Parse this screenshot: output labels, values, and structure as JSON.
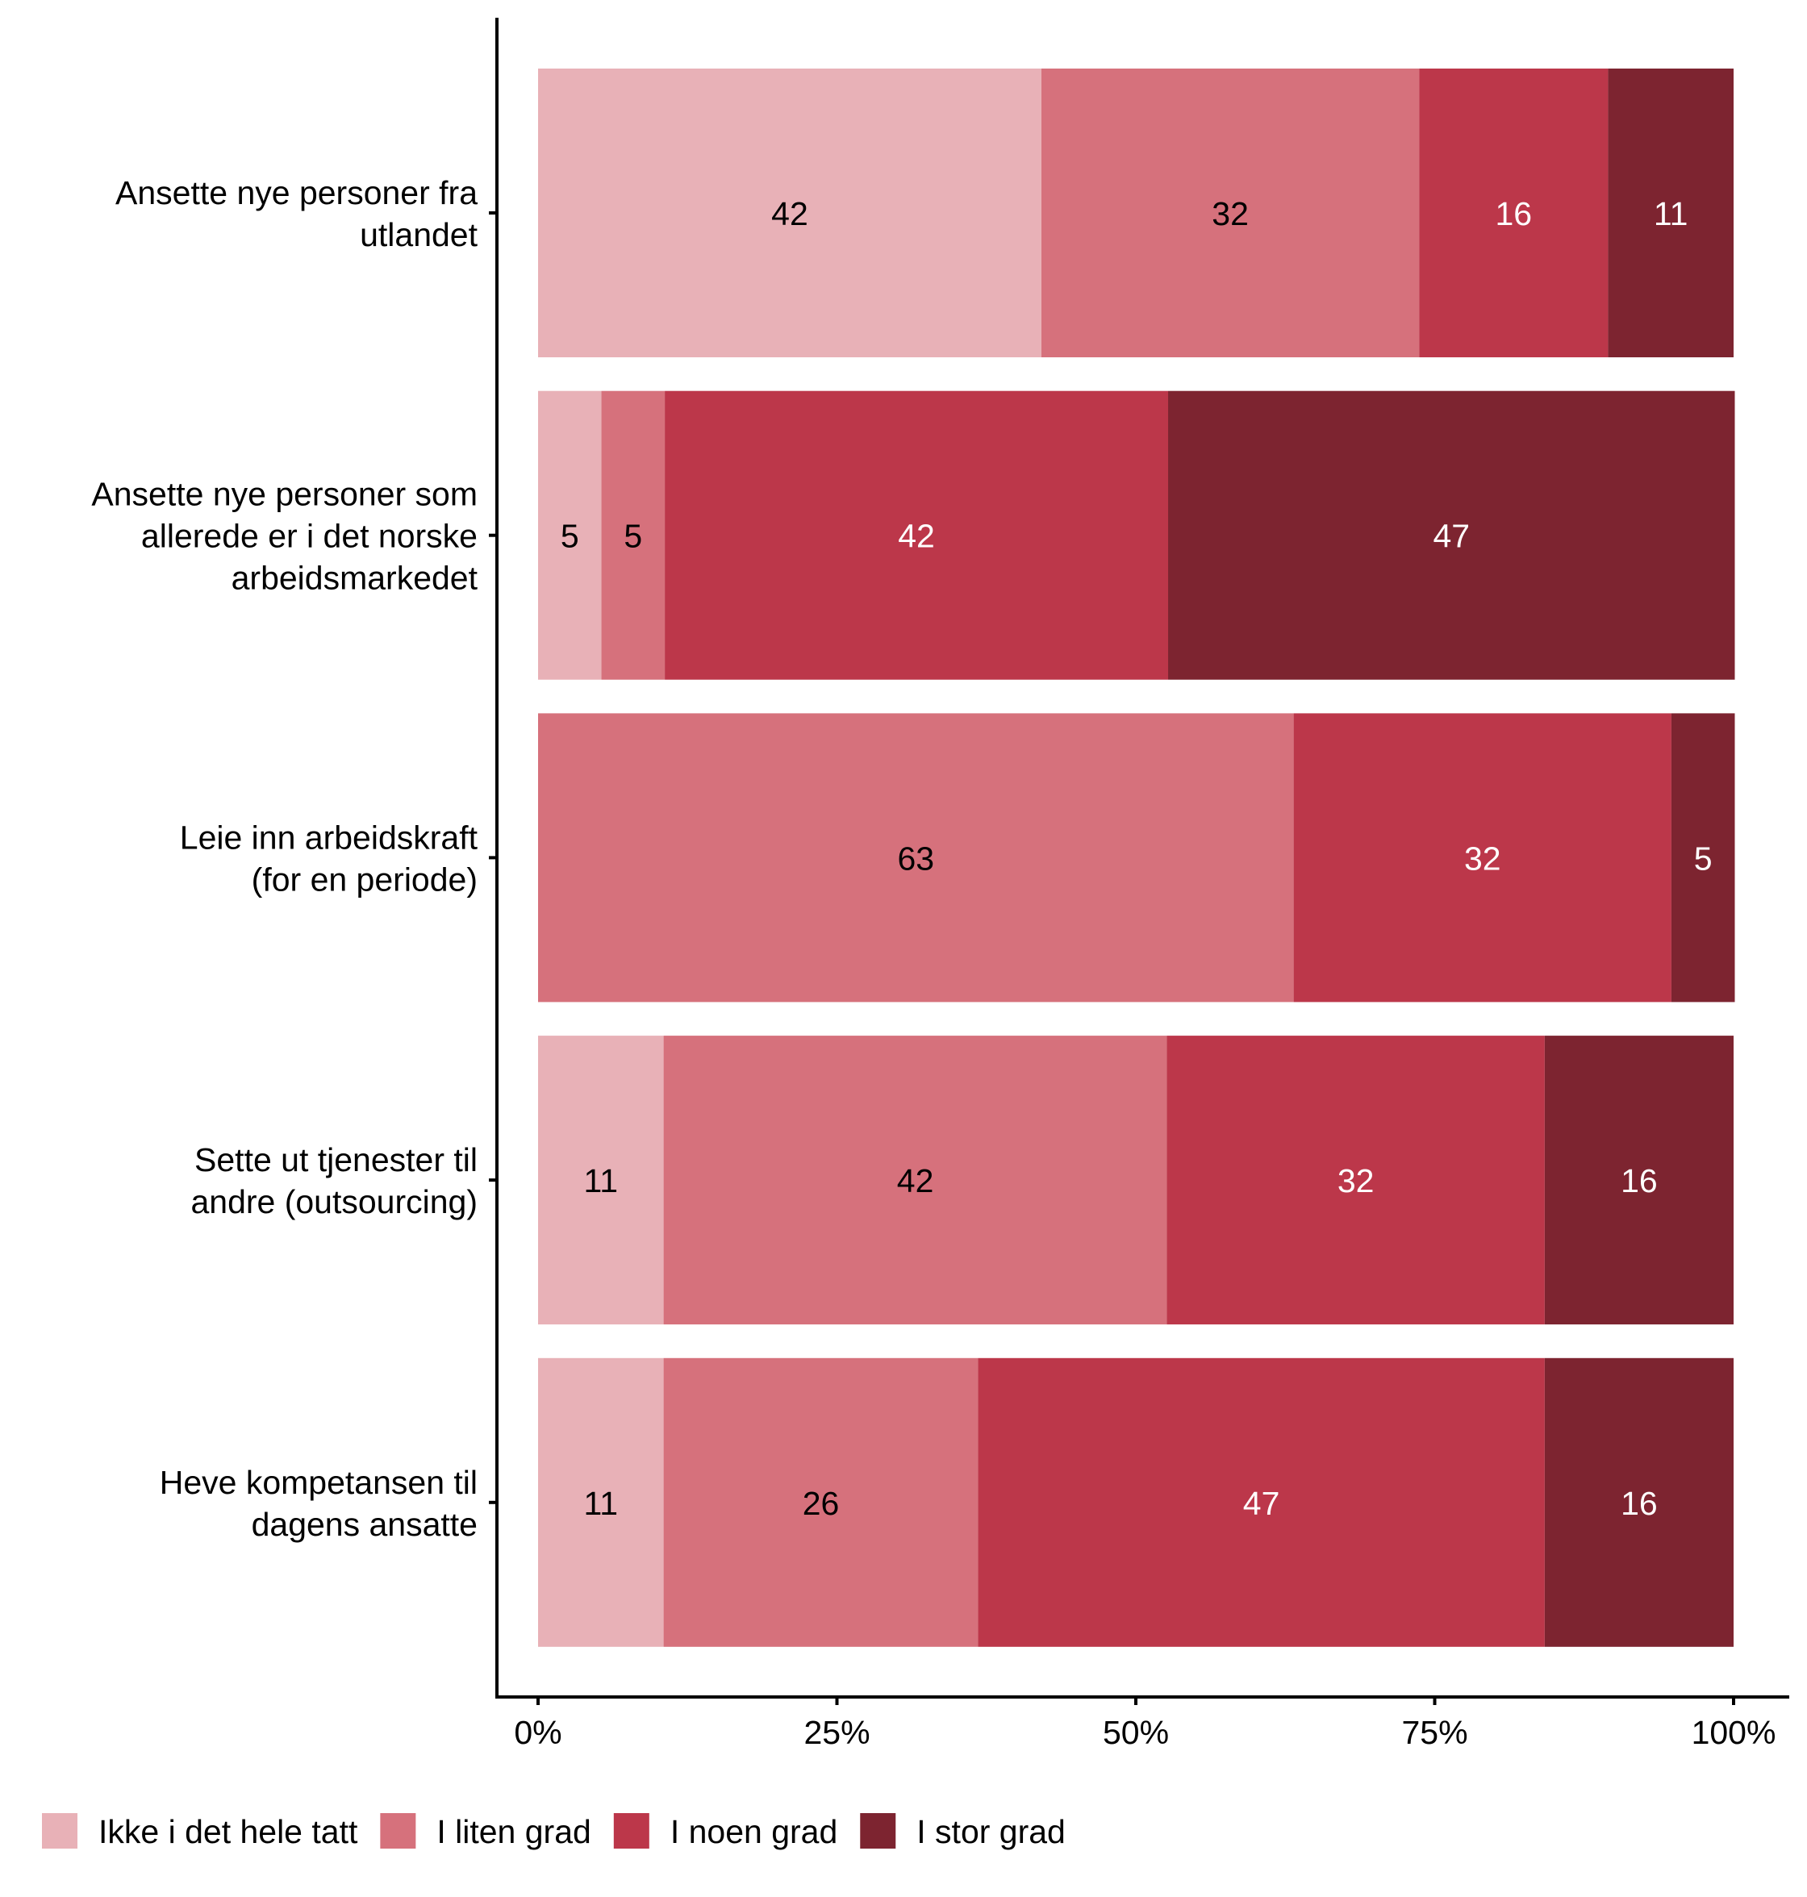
{
  "chart_data": {
    "type": "bar",
    "orientation": "horizontal",
    "stacked": true,
    "title": "",
    "xlabel": "",
    "ylabel": "",
    "xlim": [
      0,
      100
    ],
    "x_ticks": [
      "0%",
      "25%",
      "50%",
      "75%",
      "100%"
    ],
    "grid": false,
    "legend_position": "bottom",
    "categories": [
      [
        "Ansette nye personer fra",
        "utlandet"
      ],
      [
        "Ansette nye personer som",
        "allerede er i det norske",
        "arbeidsmarkedet"
      ],
      [
        "Leie inn arbeidskraft",
        "(for en periode)"
      ],
      [
        "Sette ut tjenester til",
        "andre (outsourcing)"
      ],
      [
        "Heve kompetansen til",
        "dagens ansatte"
      ]
    ],
    "series": [
      {
        "name": "Ikke i det hele tatt",
        "color": "#E8B1B7",
        "label_color": "#000000",
        "values": [
          42.1,
          5.3,
          0,
          10.5,
          10.5
        ],
        "labels": [
          "42",
          "5",
          "",
          "11",
          "11"
        ]
      },
      {
        "name": "I liten grad",
        "color": "#D6717C",
        "label_color": "#000000",
        "values": [
          31.6,
          5.3,
          63.2,
          42.1,
          26.3
        ],
        "labels": [
          "32",
          "5",
          "63",
          "42",
          "26"
        ]
      },
      {
        "name": "I noen grad",
        "color": "#BC374A",
        "label_color": "#FFFFFF",
        "values": [
          15.8,
          42.1,
          31.6,
          31.6,
          47.4
        ],
        "labels": [
          "16",
          "42",
          "32",
          "32",
          "47"
        ]
      },
      {
        "name": "I stor grad",
        "color": "#7D2430",
        "label_color": "#FFFFFF",
        "values": [
          10.5,
          47.4,
          5.3,
          15.8,
          15.8
        ],
        "labels": [
          "11",
          "47",
          "5",
          "16",
          "16"
        ]
      }
    ]
  }
}
